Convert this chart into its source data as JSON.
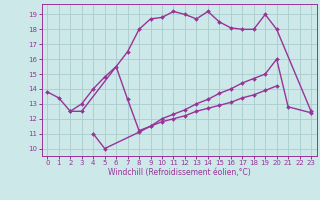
{
  "bg_color": "#cce8e8",
  "grid_color": "#aacccc",
  "line_color": "#993399",
  "marker": "D",
  "marker_size": 2.0,
  "line_width": 1.0,
  "xlim": [
    -0.5,
    23.5
  ],
  "ylim": [
    9.5,
    19.7
  ],
  "yticks": [
    10,
    11,
    12,
    13,
    14,
    15,
    16,
    17,
    18,
    19
  ],
  "xticks": [
    0,
    1,
    2,
    3,
    4,
    5,
    6,
    7,
    8,
    9,
    10,
    11,
    12,
    13,
    14,
    15,
    16,
    17,
    18,
    19,
    20,
    21,
    22,
    23
  ],
  "xlabel": "Windchill (Refroidissement éolien,°C)",
  "xlabel_fontsize": 5.5,
  "tick_fontsize": 5.0,
  "line1_x": [
    0,
    1,
    2,
    3,
    7,
    8,
    9,
    10,
    11,
    12,
    13,
    14,
    15,
    16,
    17,
    18,
    19,
    20,
    23
  ],
  "line1_y": [
    13.8,
    13.4,
    12.5,
    12.5,
    16.5,
    18.0,
    18.7,
    18.8,
    19.2,
    19.0,
    18.7,
    19.2,
    18.5,
    18.1,
    18.0,
    18.0,
    19.0,
    18.0,
    12.5
  ],
  "line2_x": [
    2,
    3,
    4,
    5,
    6,
    7,
    8,
    9,
    10,
    11,
    12,
    13,
    14,
    15,
    16,
    17,
    18,
    19,
    20,
    21,
    23
  ],
  "line2_y": [
    12.5,
    13.0,
    14.0,
    14.8,
    15.5,
    13.3,
    11.2,
    11.5,
    12.0,
    12.3,
    12.6,
    13.0,
    13.3,
    13.7,
    14.0,
    14.4,
    14.7,
    15.0,
    16.0,
    12.8,
    12.4
  ],
  "line3_x": [
    4,
    5,
    8,
    9,
    10,
    11,
    12,
    13,
    14,
    15,
    16,
    17,
    18,
    19,
    20
  ],
  "line3_y": [
    11.0,
    10.0,
    11.1,
    11.5,
    11.8,
    12.0,
    12.2,
    12.5,
    12.7,
    12.9,
    13.1,
    13.4,
    13.6,
    13.9,
    14.2
  ]
}
